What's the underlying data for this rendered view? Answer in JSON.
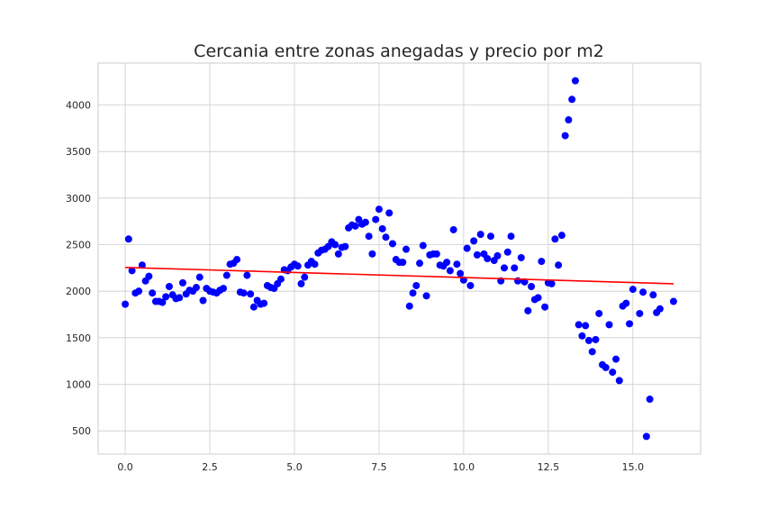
{
  "colors": {
    "points": "#0000ff",
    "trend": "#ff0000",
    "grid": "#cccccc",
    "frame": "#cccccc",
    "text": "#262626"
  },
  "chart_data": {
    "type": "scatter",
    "title": "Cercania entre zonas anegadas y precio por m2",
    "xlabel": "",
    "ylabel": "",
    "xlim": [
      -0.8,
      17.0
    ],
    "ylim": [
      250,
      4450
    ],
    "xticks": [
      0.0,
      2.5,
      5.0,
      7.5,
      10.0,
      12.5,
      15.0
    ],
    "xtick_labels": [
      "0.0",
      "2.5",
      "5.0",
      "7.5",
      "10.0",
      "12.5",
      "15.0"
    ],
    "yticks": [
      500,
      1000,
      1500,
      2000,
      2500,
      3000,
      3500,
      4000
    ],
    "ytick_labels": [
      "500",
      "1000",
      "1500",
      "2000",
      "2500",
      "3000",
      "3500",
      "4000"
    ],
    "grid": true,
    "points": [
      [
        0.0,
        1860
      ],
      [
        0.1,
        2560
      ],
      [
        0.2,
        2220
      ],
      [
        0.3,
        1980
      ],
      [
        0.4,
        2000
      ],
      [
        0.5,
        2280
      ],
      [
        0.6,
        2110
      ],
      [
        0.7,
        2160
      ],
      [
        0.8,
        1980
      ],
      [
        0.9,
        1890
      ],
      [
        1.0,
        1890
      ],
      [
        1.1,
        1880
      ],
      [
        1.2,
        1940
      ],
      [
        1.3,
        2050
      ],
      [
        1.4,
        1960
      ],
      [
        1.5,
        1920
      ],
      [
        1.6,
        1930
      ],
      [
        1.7,
        2090
      ],
      [
        1.8,
        1970
      ],
      [
        1.9,
        2010
      ],
      [
        2.0,
        2000
      ],
      [
        2.1,
        2040
      ],
      [
        2.2,
        2150
      ],
      [
        2.3,
        1900
      ],
      [
        2.4,
        2030
      ],
      [
        2.5,
        2000
      ],
      [
        2.6,
        1990
      ],
      [
        2.7,
        1980
      ],
      [
        2.8,
        2010
      ],
      [
        2.9,
        2030
      ],
      [
        3.0,
        2170
      ],
      [
        3.1,
        2290
      ],
      [
        3.2,
        2300
      ],
      [
        3.3,
        2340
      ],
      [
        3.4,
        1990
      ],
      [
        3.5,
        1980
      ],
      [
        3.6,
        2170
      ],
      [
        3.7,
        1970
      ],
      [
        3.8,
        1830
      ],
      [
        3.9,
        1900
      ],
      [
        4.0,
        1860
      ],
      [
        4.1,
        1870
      ],
      [
        4.2,
        2060
      ],
      [
        4.3,
        2040
      ],
      [
        4.4,
        2030
      ],
      [
        4.5,
        2080
      ],
      [
        4.6,
        2130
      ],
      [
        4.7,
        2230
      ],
      [
        4.8,
        2220
      ],
      [
        4.9,
        2260
      ],
      [
        5.0,
        2290
      ],
      [
        5.1,
        2270
      ],
      [
        5.2,
        2080
      ],
      [
        5.3,
        2150
      ],
      [
        5.4,
        2280
      ],
      [
        5.5,
        2320
      ],
      [
        5.6,
        2290
      ],
      [
        5.7,
        2410
      ],
      [
        5.8,
        2440
      ],
      [
        5.9,
        2450
      ],
      [
        6.0,
        2480
      ],
      [
        6.1,
        2530
      ],
      [
        6.2,
        2500
      ],
      [
        6.3,
        2400
      ],
      [
        6.4,
        2470
      ],
      [
        6.5,
        2480
      ],
      [
        6.6,
        2680
      ],
      [
        6.7,
        2710
      ],
      [
        6.8,
        2700
      ],
      [
        6.9,
        2770
      ],
      [
        7.0,
        2720
      ],
      [
        7.1,
        2740
      ],
      [
        7.2,
        2590
      ],
      [
        7.3,
        2400
      ],
      [
        7.4,
        2770
      ],
      [
        7.5,
        2880
      ],
      [
        7.6,
        2670
      ],
      [
        7.7,
        2580
      ],
      [
        7.8,
        2840
      ],
      [
        7.9,
        2510
      ],
      [
        8.0,
        2340
      ],
      [
        8.1,
        2310
      ],
      [
        8.2,
        2310
      ],
      [
        8.3,
        2450
      ],
      [
        8.4,
        1840
      ],
      [
        8.5,
        1980
      ],
      [
        8.6,
        2060
      ],
      [
        8.7,
        2300
      ],
      [
        8.8,
        2490
      ],
      [
        8.9,
        1950
      ],
      [
        9.0,
        2390
      ],
      [
        9.1,
        2400
      ],
      [
        9.2,
        2400
      ],
      [
        9.3,
        2280
      ],
      [
        9.4,
        2270
      ],
      [
        9.5,
        2310
      ],
      [
        9.6,
        2220
      ],
      [
        9.7,
        2660
      ],
      [
        9.8,
        2290
      ],
      [
        9.9,
        2190
      ],
      [
        10.0,
        2120
      ],
      [
        10.1,
        2460
      ],
      [
        10.2,
        2060
      ],
      [
        10.3,
        2540
      ],
      [
        10.4,
        2390
      ],
      [
        10.5,
        2610
      ],
      [
        10.6,
        2400
      ],
      [
        10.7,
        2350
      ],
      [
        10.8,
        2590
      ],
      [
        10.9,
        2330
      ],
      [
        11.0,
        2380
      ],
      [
        11.1,
        2110
      ],
      [
        11.2,
        2250
      ],
      [
        11.3,
        2420
      ],
      [
        11.4,
        2590
      ],
      [
        11.5,
        2250
      ],
      [
        11.6,
        2110
      ],
      [
        11.7,
        2360
      ],
      [
        11.8,
        2100
      ],
      [
        11.9,
        1790
      ],
      [
        12.0,
        2050
      ],
      [
        12.1,
        1910
      ],
      [
        12.2,
        1930
      ],
      [
        12.3,
        2320
      ],
      [
        12.4,
        1830
      ],
      [
        12.5,
        2090
      ],
      [
        12.6,
        2080
      ],
      [
        12.7,
        2560
      ],
      [
        12.8,
        2280
      ],
      [
        12.9,
        2600
      ],
      [
        13.0,
        3670
      ],
      [
        13.1,
        3840
      ],
      [
        13.2,
        4060
      ],
      [
        13.3,
        4260
      ],
      [
        13.4,
        1640
      ],
      [
        13.5,
        1520
      ],
      [
        13.6,
        1630
      ],
      [
        13.7,
        1470
      ],
      [
        13.8,
        1350
      ],
      [
        13.9,
        1480
      ],
      [
        14.0,
        1760
      ],
      [
        14.1,
        1210
      ],
      [
        14.2,
        1180
      ],
      [
        14.3,
        1640
      ],
      [
        14.4,
        1130
      ],
      [
        14.5,
        1270
      ],
      [
        14.6,
        1040
      ],
      [
        14.7,
        1840
      ],
      [
        14.8,
        1870
      ],
      [
        14.9,
        1650
      ],
      [
        15.0,
        2020
      ],
      [
        15.2,
        1760
      ],
      [
        15.3,
        1990
      ],
      [
        15.4,
        440
      ],
      [
        15.5,
        840
      ],
      [
        15.6,
        1960
      ],
      [
        15.7,
        1770
      ],
      [
        15.8,
        1810
      ],
      [
        16.2,
        1890
      ]
    ],
    "trendline": {
      "x": [
        0.0,
        16.2
      ],
      "y": [
        2255,
        2080
      ]
    }
  }
}
